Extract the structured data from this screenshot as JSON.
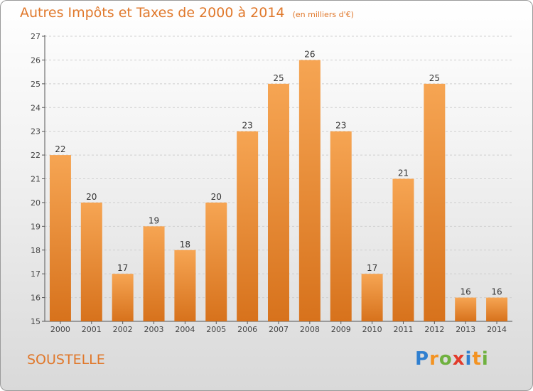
{
  "title": "Autres Impôts et Taxes de 2000 à 2014",
  "subtitle": "(en milliers d'€)",
  "location": "SOUSTELLE",
  "logo": {
    "letters": [
      "P",
      "r",
      "o",
      "x",
      "i",
      "t",
      "i"
    ],
    "colors": [
      "#2f7fd0",
      "#f39322",
      "#6fb13f",
      "#e23b2b",
      "#2f7fd0",
      "#f39322",
      "#6fb13f"
    ]
  },
  "colors": {
    "bar_top": "#f6a553",
    "bar_bottom": "#d7721c",
    "accent": "#e0782b"
  },
  "chart_data": {
    "type": "bar",
    "title": "Autres Impôts et Taxes de 2000 à 2014",
    "subtitle": "(en milliers d'€)",
    "xlabel": "",
    "ylabel": "",
    "categories": [
      "2000",
      "2001",
      "2002",
      "2003",
      "2004",
      "2005",
      "2006",
      "2007",
      "2008",
      "2009",
      "2010",
      "2011",
      "2012",
      "2013",
      "2014"
    ],
    "values": [
      22,
      20,
      17,
      19,
      18,
      20,
      23,
      25,
      26,
      23,
      17,
      21,
      25,
      16,
      16
    ],
    "ylim": [
      15,
      27
    ],
    "yticks": [
      15,
      16,
      17,
      18,
      19,
      20,
      21,
      22,
      23,
      24,
      25,
      26,
      27
    ],
    "grid": "horizontal dashed",
    "data_labels": true
  }
}
